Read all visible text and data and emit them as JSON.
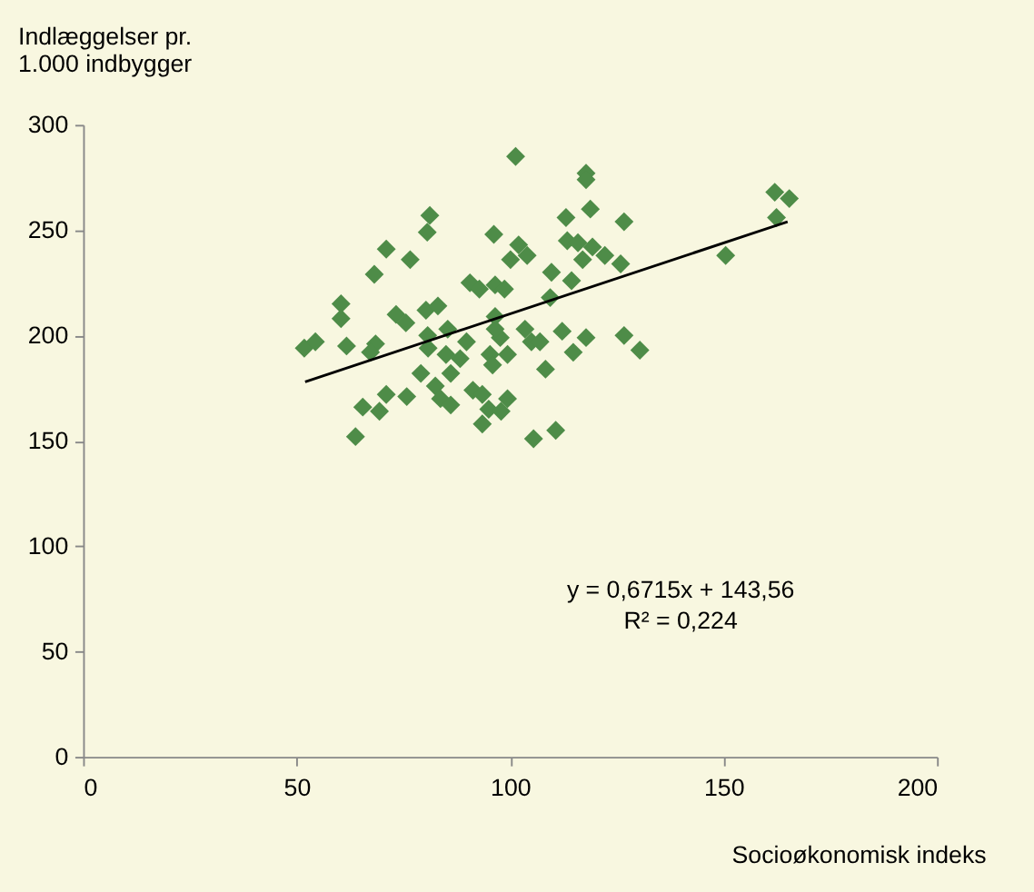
{
  "chart_data": {
    "type": "scatter",
    "xlabel": "Socioøkonomisk indeks",
    "ylabel": "Indlæggelser pr.\n1.000 indbygger",
    "xlim": [
      0,
      200
    ],
    "xticks": [
      0,
      50,
      100,
      150,
      200
    ],
    "ylim": [
      0,
      300
    ],
    "yticks": [
      0,
      50,
      100,
      150,
      200,
      250,
      300
    ],
    "grid": false,
    "annotations": [
      "y = 0,6715x + 143,56\nR² = 0,224"
    ],
    "series": [
      {
        "marker": "diamond",
        "color": "#4e8c48",
        "x": [
          51.8,
          54.4,
          60.4,
          60.4,
          61.7,
          63.8,
          65.5,
          68.2,
          68.5,
          67.3,
          69.4,
          71,
          71,
          73.3,
          75.6,
          75.8,
          76.6,
          81.2,
          80.6,
          80.3,
          83.1,
          80.7,
          79.1,
          80.8,
          82.5,
          83.7,
          85.4,
          86.1,
          85,
          86.1,
          88.3,
          90.6,
          92.8,
          89.8,
          91.3,
          93.5,
          93.5,
          95,
          96.2,
          96.5,
          98.7,
          95.3,
          95.9,
          96.5,
          97.7,
          99.4,
          99.4,
          97.9,
          96.5,
          101.3,
          100.1,
          102,
          104,
          103.5,
          105,
          107,
          108.3,
          105.5,
          109.4,
          109.7,
          110.7,
          112.2,
          113.1,
          113.4,
          114.4,
          114.8,
          115.9,
          117,
          117.8,
          117.8,
          118.8,
          117.8,
          119.3,
          122.2,
          125.9,
          126.7,
          126.7,
          130.4,
          150.5,
          162,
          162.4,
          165.4
        ],
        "values": [
          194,
          197,
          215,
          208,
          195,
          152,
          166,
          229,
          196,
          192,
          164,
          241,
          172,
          210,
          206,
          171,
          236,
          257,
          249,
          212,
          214,
          200,
          182,
          194,
          176,
          170,
          203,
          167,
          191,
          182,
          189,
          225,
          222,
          197,
          174,
          172,
          158,
          165,
          248,
          224,
          222,
          191,
          186,
          209,
          199,
          191,
          170,
          164,
          203,
          285,
          236,
          243,
          238,
          203,
          197,
          197,
          184,
          151,
          218,
          230,
          155,
          202,
          256,
          245,
          226,
          192,
          244,
          236,
          277,
          274,
          260,
          199,
          242,
          238,
          234,
          254,
          200,
          193,
          238,
          268,
          256,
          265
        ]
      },
      {
        "type": "line",
        "color": "#000000",
        "x": [
          52,
          165
        ],
        "values": [
          178,
          254
        ]
      }
    ]
  }
}
